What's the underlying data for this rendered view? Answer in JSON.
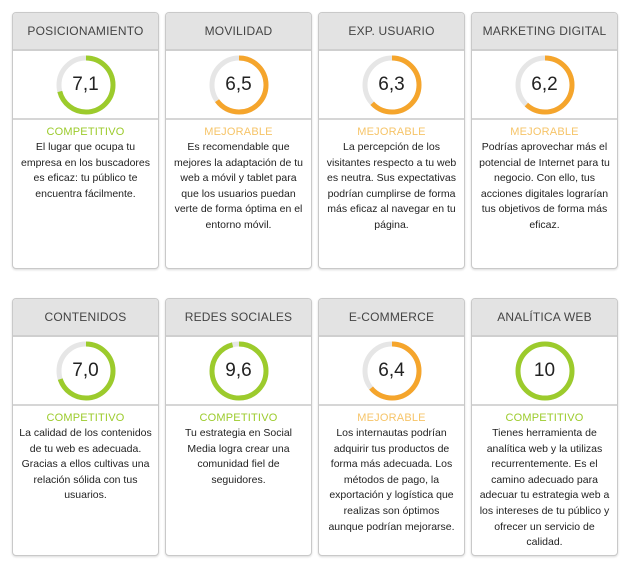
{
  "colors": {
    "competitive": "#9ccb2c",
    "improvable": "#f5a52c",
    "improvable_label": "#f6c468",
    "track": "#e6e6e6"
  },
  "cards": [
    {
      "title": "POSICIONAMIENTO",
      "score": "7,1",
      "value": 7.1,
      "status": "COMPETITIVO",
      "level": "competitive",
      "description": "El lugar que ocupa tu empresa en los buscadores es eficaz: tu público te encuentra fácilmente."
    },
    {
      "title": "MOVILIDAD",
      "score": "6,5",
      "value": 6.5,
      "status": "MEJORABLE",
      "level": "improvable",
      "description": "Es recomendable que mejores la adaptación de tu web a móvil y tablet para que los usuarios puedan verte de forma óptima en el entorno móvil."
    },
    {
      "title": "EXP. USUARIO",
      "score": "6,3",
      "value": 6.3,
      "status": "MEJORABLE",
      "level": "improvable",
      "description": "La percepción de los visitantes respecto a tu web es neutra. Sus expectativas podrían cumplirse de forma más eficaz al navegar en tu página."
    },
    {
      "title": "MARKETING DIGITAL",
      "score": "6,2",
      "value": 6.2,
      "status": "MEJORABLE",
      "level": "improvable",
      "description": "Podrías aprovechar más el potencial de Internet para tu negocio. Con ello, tus acciones digitales lograrían tus objetivos de forma más eficaz."
    },
    {
      "title": "CONTENIDOS",
      "score": "7,0",
      "value": 7.0,
      "status": "COMPETITIVO",
      "level": "competitive",
      "description": "La calidad de los contenidos de tu web es adecuada. Gracias a ellos cultivas una relación sólida con tus usuarios."
    },
    {
      "title": "REDES SOCIALES",
      "score": "9,6",
      "value": 9.6,
      "status": "COMPETITIVO",
      "level": "competitive",
      "description": "Tu estrategia en Social Media logra crear una comunidad fiel de seguidores."
    },
    {
      "title": "E-COMMERCE",
      "score": "6,4",
      "value": 6.4,
      "status": "MEJORABLE",
      "level": "improvable",
      "description": "Los internautas podrían adquirir tus productos de forma más adecuada. Los métodos de pago, la exportación y logística que realizas son óptimos aunque podrían mejorarse."
    },
    {
      "title": "ANALÍTICA WEB",
      "score": "10",
      "value": 10,
      "status": "COMPETITIVO",
      "level": "competitive",
      "description": "Tienes herramienta de analítica web y la utilizas recurrentemente. Es el camino adecuado para adecuar tu estrategia web a los intereses de tu público y ofrecer un servicio de calidad."
    }
  ]
}
